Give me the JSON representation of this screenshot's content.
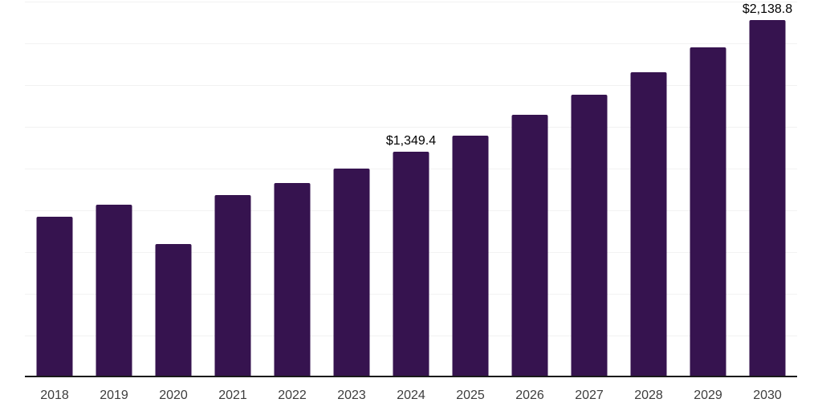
{
  "chart_data": {
    "type": "bar",
    "title": "",
    "xlabel": "",
    "ylabel": "",
    "categories": [
      "2018",
      "2019",
      "2020",
      "2021",
      "2022",
      "2023",
      "2024",
      "2025",
      "2026",
      "2027",
      "2028",
      "2029",
      "2030"
    ],
    "values": [
      960,
      1035,
      800,
      1090,
      1165,
      1252,
      1349.4,
      1449,
      1570,
      1694,
      1828,
      1977,
      2138.8
    ],
    "data_labels": [
      "",
      "",
      "",
      "",
      "",
      "",
      "$1,349.4",
      "",
      "",
      "",
      "",
      "",
      "$2,138.8"
    ],
    "ylim": [
      0,
      2250
    ],
    "gridline_step": 250,
    "grid": true,
    "legend": false,
    "colors": {
      "bar": "#36134F",
      "gridline": "#f2f2f2",
      "axis": "#1a1a1a",
      "tick_label": "#3d3d3d",
      "data_label": "#000000",
      "background": "#ffffff"
    }
  }
}
